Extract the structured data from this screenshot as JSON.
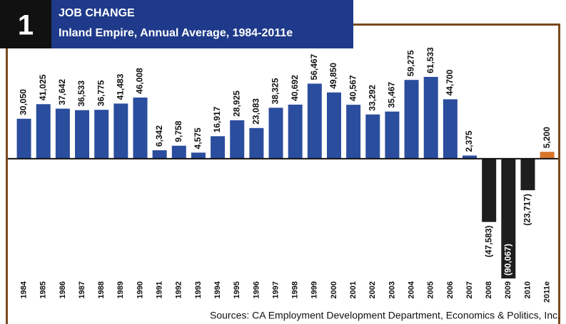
{
  "figure_number": "1",
  "chart_data": {
    "type": "bar",
    "title": "JOB CHANGE",
    "subtitle": "Inland Empire, Annual Average, 1984-2011e",
    "categories": [
      "1984",
      "1985",
      "1986",
      "1987",
      "1988",
      "1989",
      "1990",
      "1991",
      "1992",
      "1993",
      "1994",
      "1995",
      "1996",
      "1997",
      "1998",
      "1999",
      "2000",
      "2001",
      "2002",
      "2003",
      "2004",
      "2005",
      "2006",
      "2007",
      "2008",
      "2009",
      "2010",
      "2011e"
    ],
    "values": [
      30050,
      41025,
      37642,
      36533,
      36775,
      41483,
      46008,
      6342,
      9758,
      4575,
      16917,
      28925,
      23083,
      38325,
      40692,
      56467,
      49850,
      40567,
      33292,
      35467,
      59275,
      61533,
      44700,
      2375,
      -47583,
      -90067,
      -23717,
      5200
    ],
    "value_labels": [
      "30,050",
      "41,025",
      "37,642",
      "36,533",
      "36,775",
      "41,483",
      "46,008",
      "6,342",
      "9,758",
      "4,575",
      "16,917",
      "28,925",
      "23,083",
      "38,325",
      "40,692",
      "56,467",
      "49,850",
      "40,567",
      "33,292",
      "35,467",
      "59,275",
      "61,533",
      "44,700",
      "2,375",
      "(47,583)",
      "(90,067)",
      "(23,717)",
      "5,200"
    ],
    "colors": [
      "#2b4d9e",
      "#2b4d9e",
      "#2b4d9e",
      "#2b4d9e",
      "#2b4d9e",
      "#2b4d9e",
      "#2b4d9e",
      "#2b4d9e",
      "#2b4d9e",
      "#2b4d9e",
      "#2b4d9e",
      "#2b4d9e",
      "#2b4d9e",
      "#2b4d9e",
      "#2b4d9e",
      "#2b4d9e",
      "#2b4d9e",
      "#2b4d9e",
      "#2b4d9e",
      "#2b4d9e",
      "#2b4d9e",
      "#2b4d9e",
      "#2b4d9e",
      "#2b4d9e",
      "#1e1e1e",
      "#1e1e1e",
      "#1e1e1e",
      "#d9752b"
    ],
    "source": "Sources:  CA Employment Development Department, Economics & Politics, Inc."
  }
}
